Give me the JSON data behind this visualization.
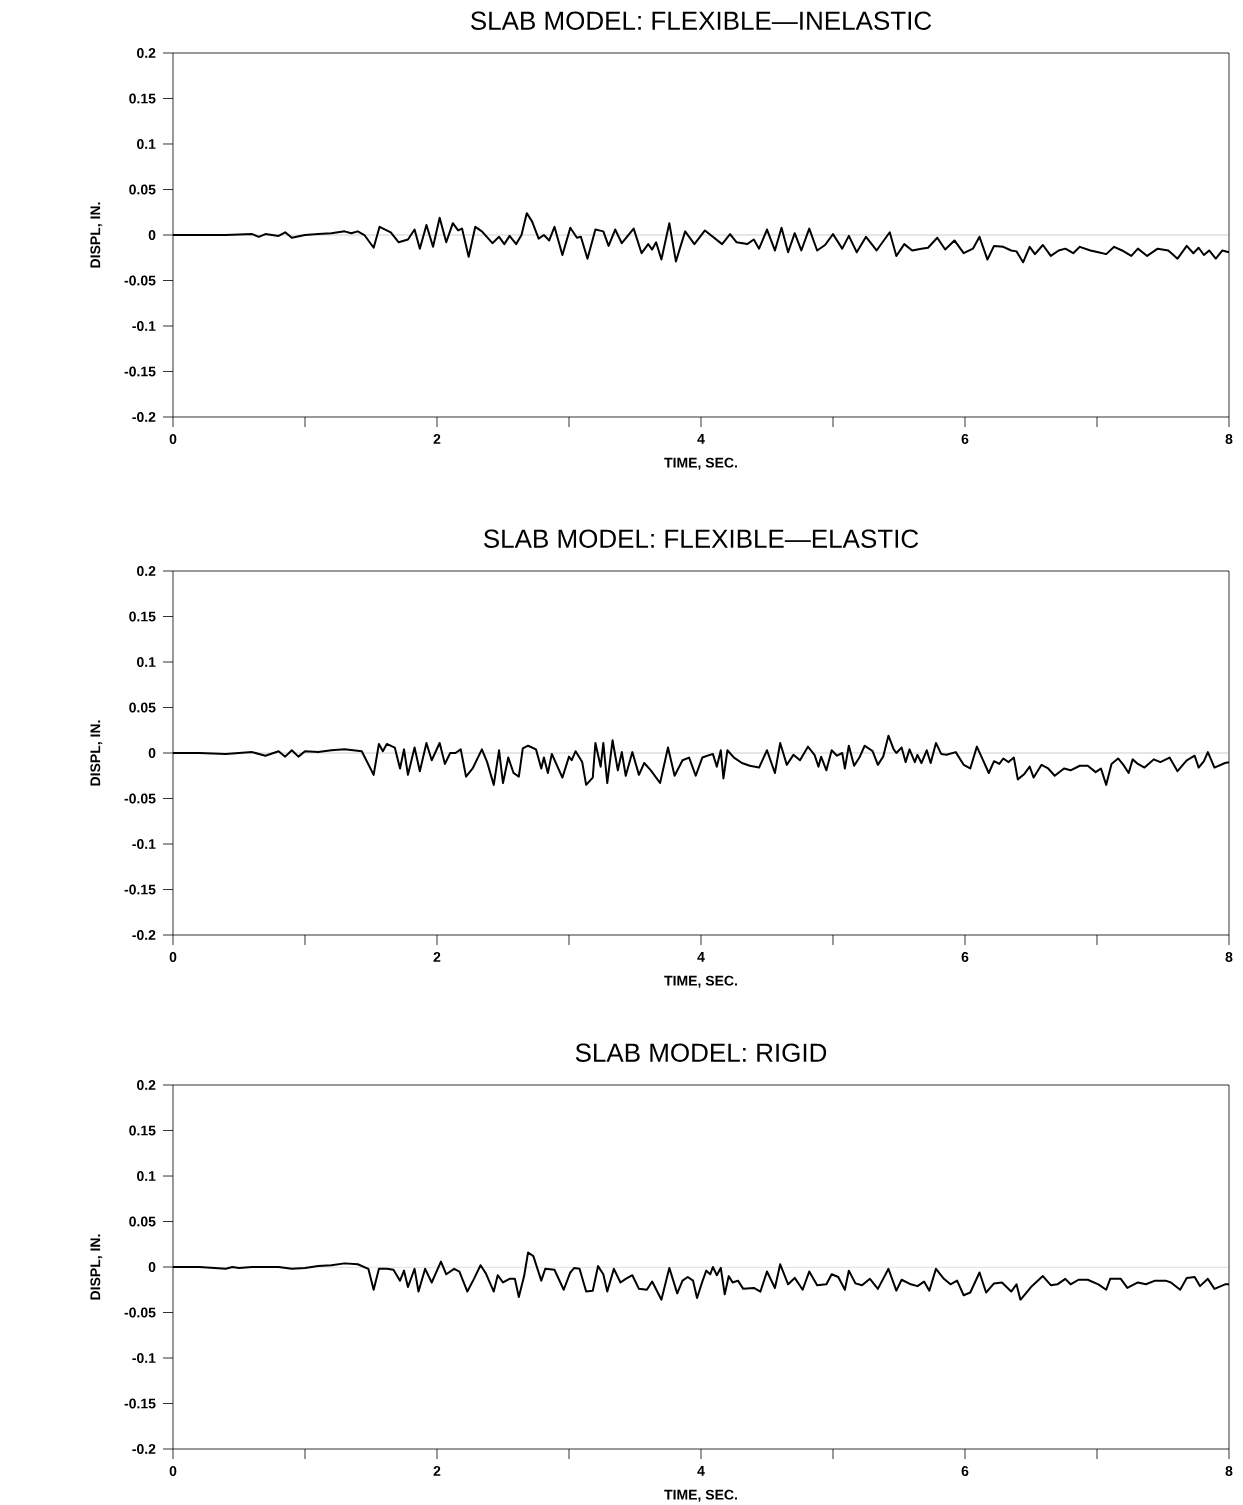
{
  "chart_data": [
    {
      "type": "line",
      "title": "SLAB MODEL: FLEXIBLE—INELASTIC",
      "xlabel": "TIME, SEC.",
      "ylabel": "DISPL, IN.",
      "color": "#000000",
      "xlim": [
        0,
        8
      ],
      "ylim": [
        -0.2,
        0.2
      ],
      "xticks": [
        0,
        {
          "value": 1,
          "label": null
        },
        2,
        {
          "value": 3,
          "label": null
        },
        4,
        {
          "value": 5,
          "label": null
        },
        6,
        {
          "value": 7,
          "label": null
        },
        8
      ],
      "yticks": [
        -0.2,
        -0.15,
        -0.1,
        -0.05,
        0,
        0.05,
        0.1,
        0.15,
        0.2
      ],
      "ref_lines": [
        {
          "axis": "y",
          "value": 0
        }
      ],
      "x": [
        0,
        0.2,
        0.4,
        0.6,
        0.65,
        0.7,
        0.8,
        0.85,
        0.9,
        1.0,
        1.1,
        1.2,
        1.3,
        1.35,
        1.4,
        1.45,
        1.52,
        1.565,
        1.65,
        1.71,
        1.78,
        1.83,
        1.87,
        1.92,
        1.97,
        2.02,
        2.07,
        2.12,
        2.16,
        2.19,
        2.24,
        2.29,
        2.34,
        2.42,
        2.47,
        2.51,
        2.55,
        2.6,
        2.64,
        2.68,
        2.72,
        2.77,
        2.81,
        2.85,
        2.89,
        2.95,
        3.01,
        3.06,
        3.09,
        3.14,
        3.2,
        3.26,
        3.3,
        3.35,
        3.4,
        3.49,
        3.55,
        3.6,
        3.63,
        3.66,
        3.7,
        3.76,
        3.81,
        3.88,
        3.95,
        4.03,
        4.16,
        4.22,
        4.27,
        4.35,
        4.4,
        4.44,
        4.5,
        4.56,
        4.61,
        4.66,
        4.71,
        4.76,
        4.82,
        4.88,
        4.94,
        5.0,
        5.07,
        5.12,
        5.18,
        5.25,
        5.33,
        5.43,
        5.48,
        5.54,
        5.6,
        5.67,
        5.72,
        5.79,
        5.85,
        5.92,
        5.99,
        6.06,
        6.11,
        6.17,
        6.22,
        6.29,
        6.35,
        6.39,
        6.44,
        6.49,
        6.53,
        6.59,
        6.65,
        6.71,
        6.76,
        6.82,
        6.87,
        6.95,
        7.01,
        7.07,
        7.13,
        7.19,
        7.26,
        7.31,
        7.38,
        7.46,
        7.54,
        7.61,
        7.68,
        7.73,
        7.77,
        7.81,
        7.85,
        7.9,
        7.95,
        8.0
      ],
      "values": [
        0,
        0,
        0,
        0.001,
        -0.002,
        0.001,
        -0.001,
        0.003,
        -0.003,
        0,
        0.001,
        0.002,
        0.004,
        0.002,
        0.004,
        0,
        -0.014,
        0.009,
        0.003,
        -0.008,
        -0.005,
        0.006,
        -0.015,
        0.011,
        -0.013,
        0.019,
        -0.008,
        0.013,
        0.005,
        0.007,
        -0.024,
        0.009,
        0.004,
        -0.009,
        -0.002,
        -0.01,
        -0.001,
        -0.01,
        0,
        0.024,
        0.015,
        -0.004,
        0,
        -0.006,
        0.009,
        -0.022,
        0.008,
        -0.003,
        -0.002,
        -0.026,
        0.006,
        0.004,
        -0.012,
        0.006,
        -0.009,
        0.007,
        -0.02,
        -0.01,
        -0.016,
        -0.008,
        -0.027,
        0.013,
        -0.029,
        0.004,
        -0.01,
        0.005,
        -0.01,
        0.001,
        -0.008,
        -0.01,
        -0.005,
        -0.015,
        0.006,
        -0.017,
        0.008,
        -0.019,
        0.002,
        -0.017,
        0.007,
        -0.017,
        -0.011,
        0.001,
        -0.015,
        -0.001,
        -0.019,
        -0.002,
        -0.017,
        0.003,
        -0.023,
        -0.01,
        -0.017,
        -0.015,
        -0.014,
        -0.003,
        -0.016,
        -0.006,
        -0.02,
        -0.015,
        -0.002,
        -0.027,
        -0.012,
        -0.013,
        -0.017,
        -0.018,
        -0.03,
        -0.013,
        -0.021,
        -0.011,
        -0.023,
        -0.017,
        -0.015,
        -0.02,
        -0.013,
        -0.017,
        -0.019,
        -0.021,
        -0.013,
        -0.017,
        -0.023,
        -0.015,
        -0.023,
        -0.015,
        -0.017,
        -0.026,
        -0.012,
        -0.02,
        -0.014,
        -0.022,
        -0.017,
        -0.026,
        -0.017,
        -0.019
      ]
    },
    {
      "type": "line",
      "title": "SLAB MODEL: FLEXIBLE—ELASTIC",
      "xlabel": "TIME, SEC.",
      "ylabel": "DISPL, IN.",
      "color": "#000000",
      "xlim": [
        0,
        8
      ],
      "ylim": [
        -0.2,
        0.2
      ],
      "xticks": [
        0,
        {
          "value": 1,
          "label": null
        },
        2,
        {
          "value": 3,
          "label": null
        },
        4,
        {
          "value": 5,
          "label": null
        },
        6,
        {
          "value": 7,
          "label": null
        },
        8
      ],
      "yticks": [
        -0.2,
        -0.15,
        -0.1,
        -0.05,
        0,
        0.05,
        0.1,
        0.15,
        0.2
      ],
      "ref_lines": [
        {
          "axis": "y",
          "value": 0
        }
      ],
      "x": [
        0,
        0.2,
        0.4,
        0.6,
        0.7,
        0.8,
        0.85,
        0.9,
        0.95,
        1.0,
        1.1,
        1.2,
        1.3,
        1.43,
        1.52,
        1.56,
        1.59,
        1.62,
        1.68,
        1.72,
        1.75,
        1.78,
        1.83,
        1.87,
        1.92,
        1.96,
        2.02,
        2.06,
        2.1,
        2.14,
        2.18,
        2.22,
        2.27,
        2.34,
        2.38,
        2.43,
        2.47,
        2.5,
        2.54,
        2.58,
        2.62,
        2.65,
        2.69,
        2.75,
        2.79,
        2.81,
        2.84,
        2.87,
        2.95,
        3.0,
        3.02,
        3.05,
        3.1,
        3.13,
        3.18,
        3.2,
        3.24,
        3.26,
        3.29,
        3.33,
        3.37,
        3.4,
        3.43,
        3.48,
        3.53,
        3.57,
        3.62,
        3.69,
        3.75,
        3.8,
        3.86,
        3.91,
        3.96,
        4.01,
        4.09,
        4.12,
        4.15,
        4.17,
        4.2,
        4.25,
        4.31,
        4.37,
        4.44,
        4.5,
        4.56,
        4.6,
        4.65,
        4.7,
        4.75,
        4.81,
        4.86,
        4.89,
        4.91,
        4.95,
        4.99,
        5.03,
        5.07,
        5.09,
        5.12,
        5.16,
        5.2,
        5.24,
        5.3,
        5.34,
        5.38,
        5.42,
        5.46,
        5.48,
        5.52,
        5.55,
        5.58,
        5.62,
        5.64,
        5.67,
        5.71,
        5.74,
        5.78,
        5.82,
        5.86,
        5.93,
        5.99,
        6.04,
        6.09,
        6.14,
        6.18,
        6.22,
        6.26,
        6.29,
        6.33,
        6.37,
        6.4,
        6.45,
        6.49,
        6.52,
        6.58,
        6.63,
        6.68,
        6.75,
        6.8,
        6.87,
        6.93,
        6.99,
        7.03,
        7.07,
        7.11,
        7.16,
        7.2,
        7.24,
        7.27,
        7.31,
        7.36,
        7.43,
        7.48,
        7.55,
        7.61,
        7.68,
        7.74,
        7.77,
        7.81,
        7.84,
        7.89,
        7.97,
        8.0
      ],
      "values": [
        0,
        0,
        -0.001,
        0.001,
        -0.003,
        0.002,
        -0.004,
        0.003,
        -0.004,
        0.002,
        0.001,
        0.003,
        0.004,
        0.002,
        -0.024,
        0.01,
        0.002,
        0.01,
        0.006,
        -0.017,
        0.004,
        -0.024,
        0.006,
        -0.02,
        0.011,
        -0.008,
        0.011,
        -0.012,
        0,
        0,
        0.004,
        -0.026,
        -0.017,
        0.004,
        -0.01,
        -0.035,
        0.003,
        -0.033,
        -0.005,
        -0.022,
        -0.026,
        0.005,
        0.008,
        0.004,
        -0.017,
        -0.005,
        -0.022,
        -0.001,
        -0.027,
        -0.004,
        -0.008,
        0.002,
        -0.01,
        -0.035,
        -0.027,
        0.011,
        -0.015,
        0.011,
        -0.033,
        0.014,
        -0.019,
        0.001,
        -0.025,
        0.001,
        -0.024,
        -0.011,
        -0.019,
        -0.033,
        0.006,
        -0.025,
        -0.008,
        -0.005,
        -0.025,
        -0.005,
        -0.001,
        -0.015,
        0.003,
        -0.028,
        0.003,
        -0.005,
        -0.011,
        -0.014,
        -0.016,
        0.003,
        -0.022,
        0.011,
        -0.013,
        -0.002,
        -0.008,
        0.007,
        -0.002,
        -0.015,
        -0.004,
        -0.019,
        0.003,
        -0.003,
        0,
        -0.017,
        0.008,
        -0.014,
        -0.005,
        0.008,
        0.002,
        -0.013,
        -0.004,
        0.019,
        0.004,
        0,
        0.006,
        -0.01,
        0.004,
        -0.01,
        -0.002,
        -0.011,
        0.003,
        -0.011,
        0.011,
        -0.001,
        -0.002,
        0.001,
        -0.013,
        -0.017,
        0.007,
        -0.009,
        -0.022,
        -0.009,
        -0.012,
        -0.006,
        -0.01,
        -0.005,
        -0.029,
        -0.023,
        -0.015,
        -0.027,
        -0.013,
        -0.017,
        -0.025,
        -0.017,
        -0.019,
        -0.014,
        -0.014,
        -0.021,
        -0.017,
        -0.035,
        -0.012,
        -0.006,
        -0.013,
        -0.022,
        -0.007,
        -0.012,
        -0.016,
        -0.007,
        -0.01,
        -0.005,
        -0.02,
        -0.008,
        -0.003,
        -0.016,
        -0.009,
        0.001,
        -0.016,
        -0.011,
        -0.01
      ]
    },
    {
      "type": "line",
      "title": "SLAB MODEL: RIGID",
      "xlabel": "TIME, SEC.",
      "ylabel": "DISPL, IN.",
      "color": "#000000",
      "xlim": [
        0,
        8
      ],
      "ylim": [
        -0.2,
        0.2
      ],
      "xticks": [
        0,
        {
          "value": 1,
          "label": null
        },
        2,
        {
          "value": 3,
          "label": null
        },
        4,
        {
          "value": 5,
          "label": null
        },
        6,
        {
          "value": 7,
          "label": null
        },
        8
      ],
      "yticks": [
        -0.2,
        -0.15,
        -0.1,
        -0.05,
        0,
        0.05,
        0.1,
        0.15,
        0.2
      ],
      "ref_lines": [
        {
          "axis": "y",
          "value": 0
        }
      ],
      "x": [
        0,
        0.2,
        0.3,
        0.4,
        0.45,
        0.5,
        0.6,
        0.8,
        0.9,
        1.0,
        1.1,
        1.2,
        1.3,
        1.4,
        1.48,
        1.52,
        1.56,
        1.62,
        1.67,
        1.72,
        1.75,
        1.78,
        1.83,
        1.86,
        1.91,
        1.96,
        2.03,
        2.07,
        2.13,
        2.17,
        2.23,
        2.28,
        2.33,
        2.37,
        2.43,
        2.46,
        2.5,
        2.55,
        2.59,
        2.62,
        2.66,
        2.69,
        2.73,
        2.79,
        2.82,
        2.89,
        2.96,
        3.01,
        3.04,
        3.08,
        3.13,
        3.18,
        3.22,
        3.26,
        3.29,
        3.34,
        3.39,
        3.43,
        3.48,
        3.53,
        3.59,
        3.63,
        3.7,
        3.76,
        3.82,
        3.86,
        3.9,
        3.94,
        3.97,
        4.01,
        4.04,
        4.07,
        4.09,
        4.12,
        4.15,
        4.18,
        4.21,
        4.24,
        4.28,
        4.32,
        4.4,
        4.45,
        4.5,
        4.56,
        4.6,
        4.66,
        4.71,
        4.77,
        4.82,
        4.88,
        4.95,
        4.99,
        5.04,
        5.09,
        5.12,
        5.17,
        5.22,
        5.28,
        5.34,
        5.42,
        5.48,
        5.52,
        5.59,
        5.64,
        5.69,
        5.73,
        5.78,
        5.84,
        5.89,
        5.94,
        5.99,
        6.04,
        6.11,
        6.16,
        6.22,
        6.28,
        6.35,
        6.39,
        6.42,
        6.5,
        6.59,
        6.65,
        6.7,
        6.76,
        6.8,
        6.86,
        6.93,
        7.01,
        7.07,
        7.1,
        7.18,
        7.23,
        7.31,
        7.37,
        7.44,
        7.52,
        7.56,
        7.63,
        7.68,
        7.74,
        7.78,
        7.84,
        7.89,
        7.97,
        8.0
      ],
      "values": [
        0,
        0,
        -0.001,
        -0.002,
        0,
        -0.001,
        0,
        0,
        -0.002,
        -0.001,
        0.001,
        0.002,
        0.004,
        0.003,
        -0.002,
        -0.025,
        -0.002,
        -0.002,
        -0.003,
        -0.015,
        -0.004,
        -0.022,
        -0.002,
        -0.027,
        -0.002,
        -0.017,
        0.006,
        -0.008,
        -0.002,
        -0.005,
        -0.027,
        -0.013,
        0.002,
        -0.007,
        -0.027,
        -0.009,
        -0.017,
        -0.013,
        -0.013,
        -0.033,
        -0.01,
        0.016,
        0.012,
        -0.015,
        -0.002,
        -0.003,
        -0.025,
        -0.006,
        -0.001,
        -0.002,
        -0.027,
        -0.026,
        0.001,
        -0.008,
        -0.027,
        -0.002,
        -0.017,
        -0.013,
        -0.009,
        -0.024,
        -0.025,
        -0.016,
        -0.036,
        -0.001,
        -0.029,
        -0.015,
        -0.011,
        -0.015,
        -0.034,
        -0.016,
        -0.004,
        -0.008,
        0,
        -0.009,
        -0.001,
        -0.03,
        -0.01,
        -0.017,
        -0.015,
        -0.024,
        -0.023,
        -0.027,
        -0.005,
        -0.023,
        0.003,
        -0.019,
        -0.012,
        -0.025,
        -0.005,
        -0.02,
        -0.019,
        -0.008,
        -0.011,
        -0.025,
        -0.004,
        -0.018,
        -0.02,
        -0.013,
        -0.024,
        -0.002,
        -0.026,
        -0.014,
        -0.019,
        -0.021,
        -0.016,
        -0.026,
        -0.002,
        -0.013,
        -0.019,
        -0.015,
        -0.031,
        -0.028,
        -0.006,
        -0.028,
        -0.018,
        -0.017,
        -0.027,
        -0.019,
        -0.036,
        -0.022,
        -0.01,
        -0.02,
        -0.019,
        -0.013,
        -0.019,
        -0.014,
        -0.014,
        -0.019,
        -0.025,
        -0.013,
        -0.013,
        -0.023,
        -0.017,
        -0.019,
        -0.015,
        -0.015,
        -0.017,
        -0.025,
        -0.012,
        -0.011,
        -0.021,
        -0.013,
        -0.024,
        -0.019,
        -0.019
      ]
    }
  ]
}
